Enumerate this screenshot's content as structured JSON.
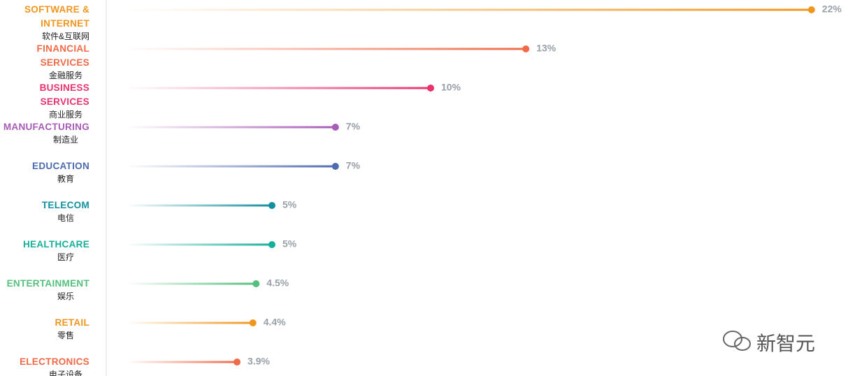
{
  "chart_data": {
    "type": "lollipop",
    "categories": [
      "SOFTWARE & INTERNET",
      "FINANCIAL SERVICES",
      "BUSINESS SERVICES",
      "MANUFACTURING",
      "EDUCATION",
      "TELECOM",
      "HEALTHCARE",
      "ENTERTAINMENT",
      "RETAIL",
      "ELECTRONICS"
    ],
    "categories_zh": [
      "软件&互联网",
      "金融服务",
      "商业服务",
      "制造业",
      "教育",
      "电信",
      "医疗",
      "娱乐",
      "零售",
      "电子设备"
    ],
    "values": [
      22,
      13,
      10,
      7,
      7,
      5,
      5,
      4.5,
      4.4,
      3.9
    ],
    "value_labels": [
      "22%",
      "13%",
      "10%",
      "7%",
      "7%",
      "5%",
      "5%",
      "4.5%",
      "4.4%",
      "3.9%"
    ],
    "colors": [
      "#f0961e",
      "#f06a48",
      "#e8336e",
      "#a75cb5",
      "#4e6bb0",
      "#13909e",
      "#16b09a",
      "#55bf7d",
      "#f0961e",
      "#f06a48"
    ]
  },
  "watermark": "新智元"
}
